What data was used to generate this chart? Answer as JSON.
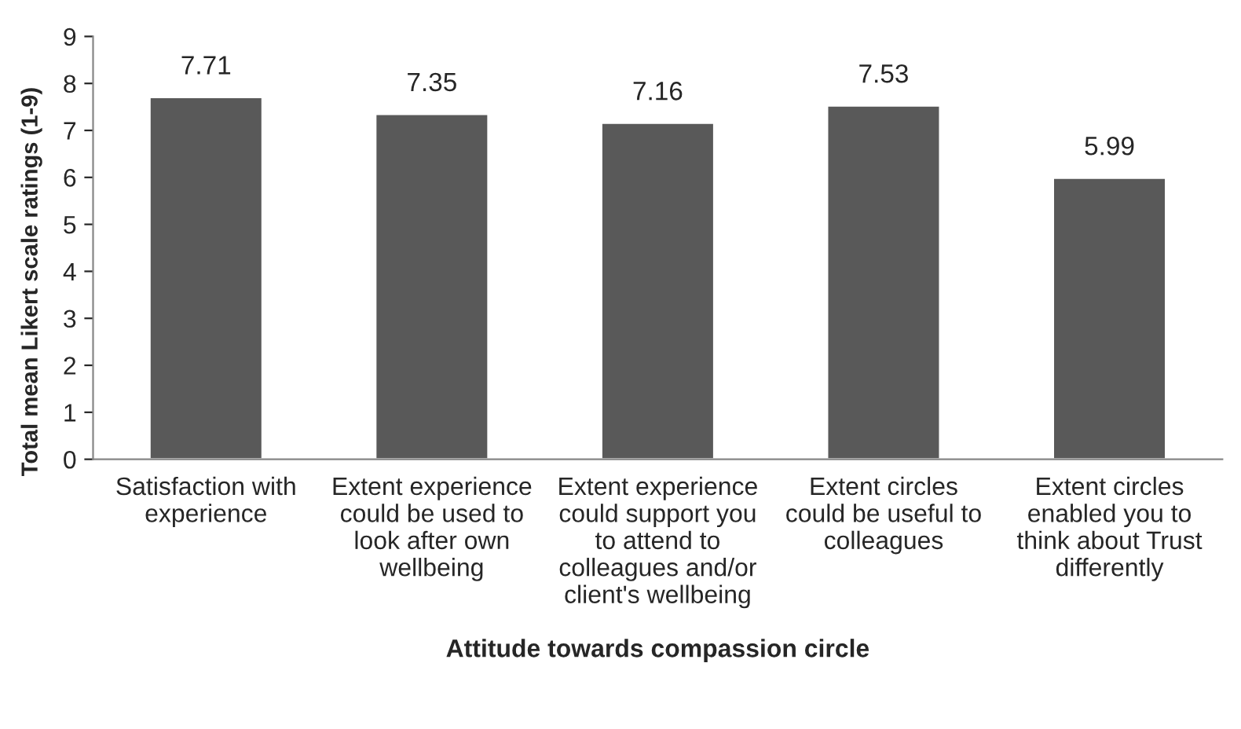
{
  "chart_data": {
    "type": "bar",
    "xlabel": "Attitude towards compassion circle",
    "ylabel": "Total mean Likert scale ratings (1-9)",
    "categories": [
      "Satisfaction with experience",
      "Extent experience could be used to look after own wellbeing",
      "Extent experience could support you to attend to colleagues and/or client's wellbeing",
      "Extent circles could be useful to colleagues",
      "Extent circles enabled you to think about Trust differently"
    ],
    "values": [
      7.71,
      7.35,
      7.16,
      7.53,
      5.99
    ],
    "color": "#595959",
    "ylim": [
      0,
      9
    ],
    "yticks": [
      0,
      1,
      2,
      3,
      4,
      5,
      6,
      7,
      8,
      9
    ],
    "data_labels": true,
    "grid": false,
    "legend": false
  }
}
